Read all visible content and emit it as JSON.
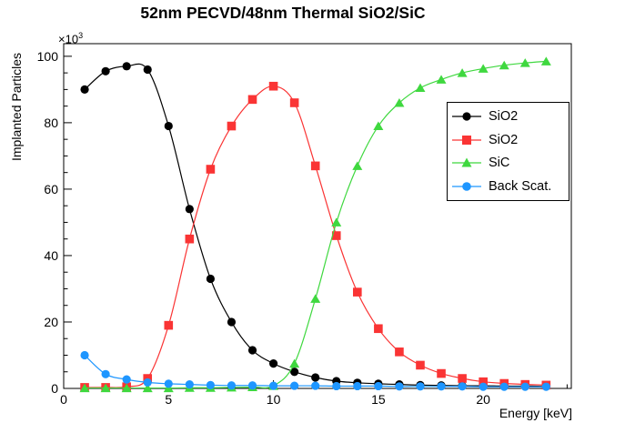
{
  "chart": {
    "title": "52nm PECVD/48nm Thermal SiO2/SiC",
    "y_mult_base": "×10",
    "y_mult_exp": "3"
  },
  "chart_data": {
    "type": "line",
    "title": "52nm PECVD/48nm Thermal SiO2/SiC",
    "xlabel": "Energy [keV]",
    "ylabel": "Implanted Particles",
    "y_axis_multiplier": "×10³",
    "y_units": "thousands of particles",
    "x": [
      1,
      2,
      3,
      4,
      5,
      6,
      7,
      8,
      9,
      10,
      11,
      12,
      13,
      14,
      15,
      16,
      17,
      18,
      19,
      20,
      21,
      22,
      23
    ],
    "series": [
      {
        "name": "SiO2",
        "marker": "circle",
        "color": "#000000",
        "values": [
          90,
          95.5,
          97,
          96,
          79,
          54,
          33,
          20,
          11.5,
          7.5,
          5,
          3.3,
          2.2,
          1.7,
          1.4,
          1.2,
          1,
          0.9,
          0.8,
          0.8,
          0.7,
          0.7,
          0.6
        ]
      },
      {
        "name": "SiO2",
        "marker": "square",
        "color": "#fa3434",
        "values": [
          0.3,
          0.3,
          0.5,
          3,
          19,
          45,
          66,
          79,
          87,
          91,
          86,
          67,
          46,
          29,
          18,
          11,
          7,
          4.5,
          3,
          2,
          1.5,
          1.2,
          1
        ]
      },
      {
        "name": "SiC",
        "marker": "triangle",
        "color": "#3fd83f",
        "values": [
          0.1,
          0.1,
          0.1,
          0.1,
          0.1,
          0.2,
          0.2,
          0.3,
          0.4,
          0.8,
          7.5,
          27,
          50,
          67,
          79,
          86,
          90.5,
          93,
          95,
          96.3,
          97.3,
          98,
          98.5
        ]
      },
      {
        "name": "Back Scat.",
        "marker": "circle",
        "color": "#1e96ff",
        "values": [
          10,
          4.3,
          2.7,
          1.8,
          1.4,
          1.2,
          1,
          0.9,
          0.9,
          0.8,
          0.8,
          0.8,
          0.7,
          0.7,
          0.7,
          0.6,
          0.6,
          0.6,
          0.6,
          0.5,
          0.5,
          0.5,
          0.5
        ]
      }
    ],
    "xlim": [
      0,
      24.2
    ],
    "ylim": [
      0,
      103.8
    ],
    "xticks": [
      "0",
      "5",
      "10",
      "15",
      "20"
    ],
    "xtick_values": [
      0,
      5,
      10,
      15,
      20
    ],
    "yticks": [
      "0",
      "20",
      "40",
      "60",
      "80",
      "100"
    ],
    "ytick_values": [
      0,
      20,
      40,
      60,
      80,
      100
    ],
    "minor_x_step": 1,
    "minor_y_step": 5,
    "grid": false,
    "legend_position": "inside-right"
  }
}
